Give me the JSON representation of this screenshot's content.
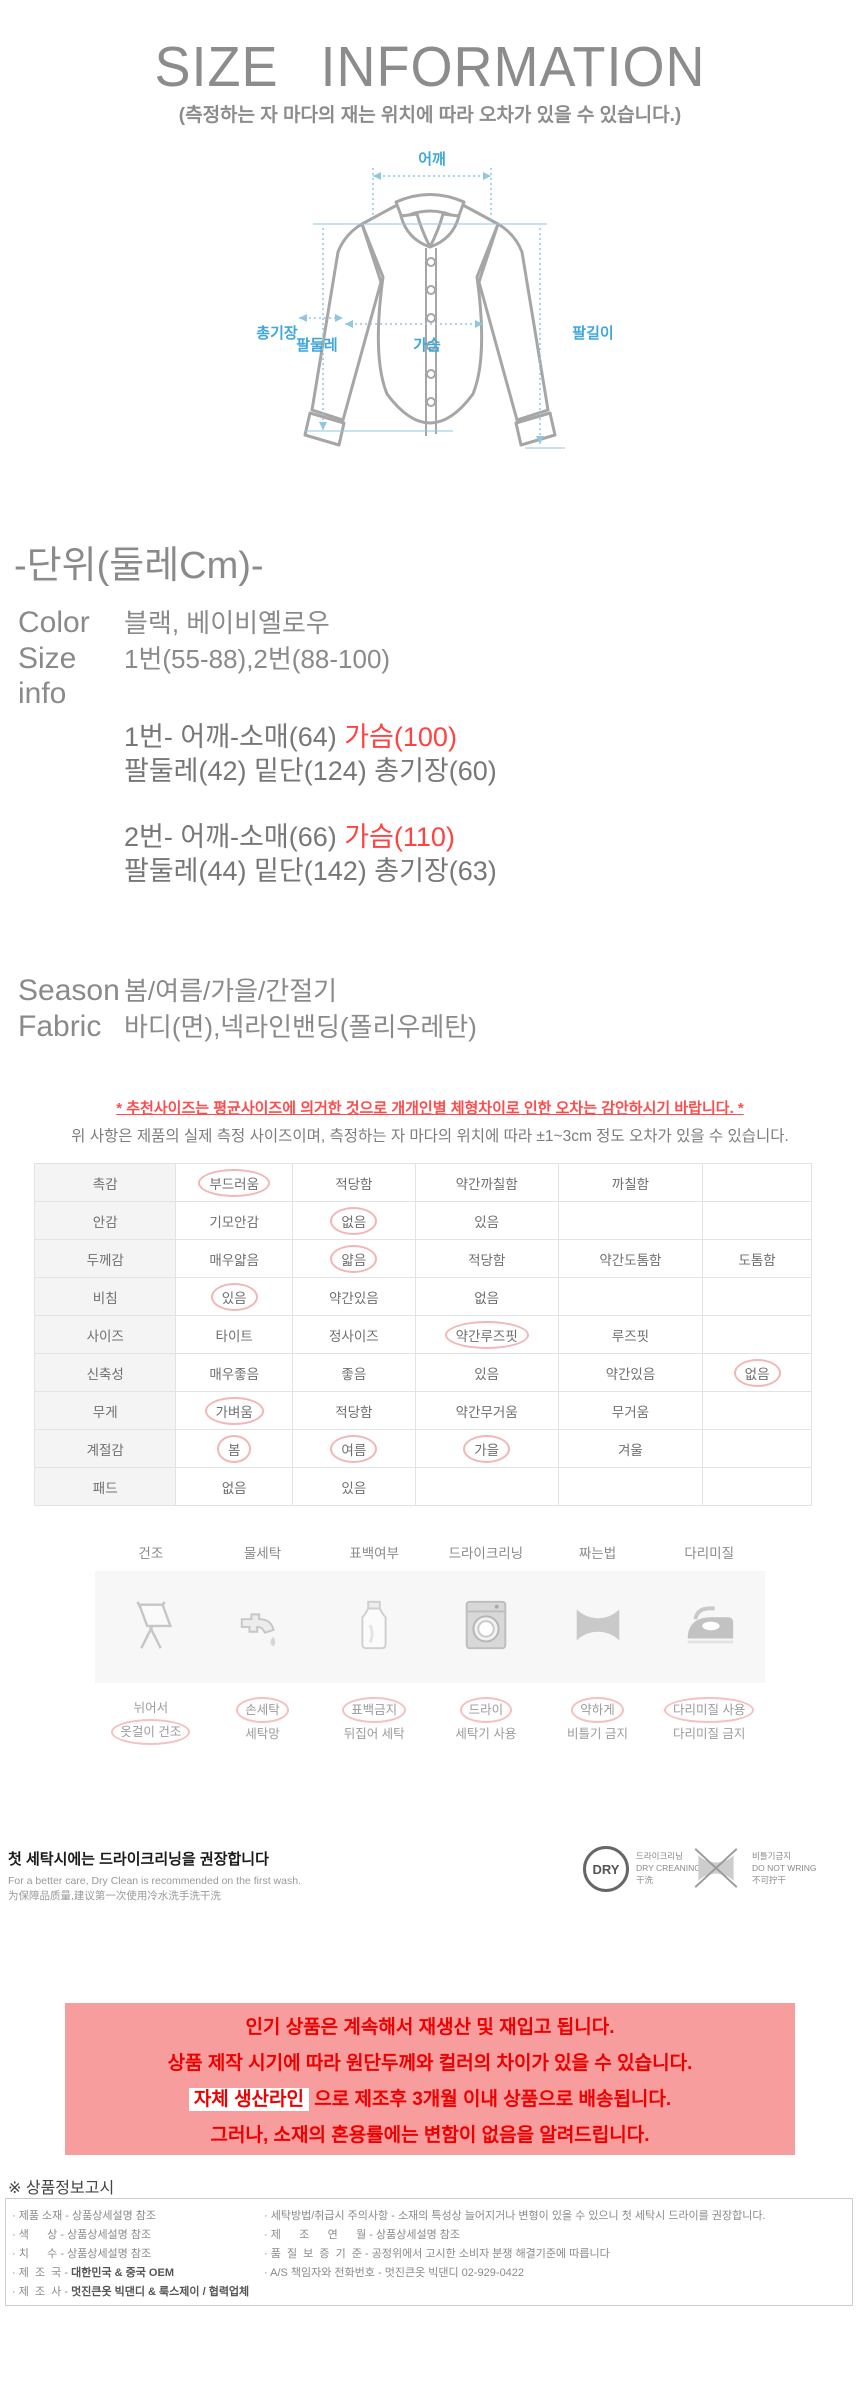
{
  "page": {
    "title": "SIZE INFORMATION",
    "subtitle": "(측정하는 자 마다의 재는 위치에 따라 오차가 있을 수 있습니다.)"
  },
  "diagram": {
    "shoulder": "어깨",
    "arm_circumference": "팔둘레",
    "chest": "가슴",
    "total_length": "총기장",
    "arm_length": "팔길이"
  },
  "unit_heading": "-단위(둘레Cm)-",
  "specs": {
    "color_label": "Color",
    "color_value": "블랙, 베이비옐로우",
    "size_info_label": "Size info",
    "size_info_value": "1번(55-88),2번(88-100)",
    "size1_prefix": "1번- 어깨-소매(64) ",
    "size1_chest": "가슴(100)",
    "size1_line2": "팔둘레(42) 밑단(124) 총기장(60)",
    "size2_prefix": "2번- 어깨-소매(66) ",
    "size2_chest": "가슴(110)",
    "size2_line2": "팔둘레(44) 밑단(142) 총기장(63)",
    "season_label": "Season",
    "season_value": "봄/여름/가을/간절기",
    "fabric_label": "Fabric",
    "fabric_value": "바디(면),넥라인밴딩(폴리우레탄)"
  },
  "notice": {
    "red": "* 추천사이즈는 평균사이즈에 의거한 것으로 개개인별 체형차이로 인한 오차는 감안하시기 바랍니다. *",
    "gray": "위 사항은 제품의 실제 측정 사이즈이며, 측정하는 자 마다의 위치에 따라 ±1~3cm 정도 오차가 있을 수 있습니다."
  },
  "property_table": {
    "rows": [
      {
        "label": "촉감",
        "cells": [
          {
            "t": "부드러움",
            "c": true
          },
          {
            "t": "적당함"
          },
          {
            "t": "약간까칠함"
          },
          {
            "t": "까칠함"
          },
          {
            "t": ""
          }
        ]
      },
      {
        "label": "안감",
        "cells": [
          {
            "t": "기모안감"
          },
          {
            "t": "없음",
            "c": true
          },
          {
            "t": "있음"
          },
          {
            "t": ""
          },
          {
            "t": ""
          }
        ]
      },
      {
        "label": "두께감",
        "cells": [
          {
            "t": "매우얇음"
          },
          {
            "t": "얇음",
            "c": true
          },
          {
            "t": "적당함"
          },
          {
            "t": "약간도톰함"
          },
          {
            "t": "도톰함"
          }
        ]
      },
      {
        "label": "비침",
        "cells": [
          {
            "t": "있음",
            "c": true
          },
          {
            "t": "약간있음"
          },
          {
            "t": "없음"
          },
          {
            "t": ""
          },
          {
            "t": ""
          }
        ]
      },
      {
        "label": "사이즈",
        "cells": [
          {
            "t": "타이트"
          },
          {
            "t": "정사이즈"
          },
          {
            "t": "약간루즈핏",
            "c": true
          },
          {
            "t": "루즈핏"
          },
          {
            "t": ""
          }
        ]
      },
      {
        "label": "신축성",
        "cells": [
          {
            "t": "매우좋음"
          },
          {
            "t": "좋음"
          },
          {
            "t": "있음"
          },
          {
            "t": "약간있음"
          },
          {
            "t": "없음",
            "c": true
          }
        ]
      },
      {
        "label": "무게",
        "cells": [
          {
            "t": "가벼움",
            "c": true
          },
          {
            "t": "적당함"
          },
          {
            "t": "약간무거움"
          },
          {
            "t": "무거움"
          },
          {
            "t": ""
          }
        ]
      },
      {
        "label": "계절감",
        "cells": [
          {
            "t": "봄",
            "c": true
          },
          {
            "t": "여름",
            "c": true
          },
          {
            "t": "가을",
            "c": true
          },
          {
            "t": "겨울"
          },
          {
            "t": ""
          }
        ]
      },
      {
        "label": "패드",
        "cells": [
          {
            "t": "없음"
          },
          {
            "t": "있음"
          },
          {
            "t": ""
          },
          {
            "t": ""
          },
          {
            "t": ""
          }
        ]
      }
    ]
  },
  "care": {
    "columns": [
      {
        "header": "건조",
        "icon": "drying-rack-icon",
        "line1": "뉘어서",
        "line2": "옷걸이 건조",
        "circled": "line2"
      },
      {
        "header": "물세탁",
        "icon": "faucet-icon",
        "line1": "손세탁",
        "line2": "세탁망",
        "circled": "line1"
      },
      {
        "header": "표백여부",
        "icon": "detergent-bottle-icon",
        "line1": "표백금지",
        "line2": "뒤집어 세탁",
        "circled": "line1"
      },
      {
        "header": "드라이크리닝",
        "icon": "washing-machine-icon",
        "line1": "드라이",
        "line2": "세탁기 사용",
        "circled": "line1"
      },
      {
        "header": "짜는법",
        "icon": "wring-icon",
        "line1": "약하게",
        "line2": "비틀기 금지",
        "circled": "line1"
      },
      {
        "header": "다리미질",
        "icon": "iron-icon",
        "line1": "다리미질 사용",
        "line2": "다리미질 금지",
        "circled": "line1"
      }
    ]
  },
  "wash_note": {
    "bold": "첫 세탁시에는 드라이크리닝을 권장합니다",
    "en": "For a better care, Dry Clean is recommended on the first wash.",
    "cn": "为保障品质量,建议第一次使用冷水洗手洗干洗",
    "dry_badge": "DRY",
    "dry_caption1": "드라이크리닝",
    "dry_caption2": "DRY CREANING",
    "dry_caption3": "干洗",
    "wring_caption1": "비틀기금지",
    "wring_caption2": "DO NOT WRING",
    "wring_caption3": "不可拧干"
  },
  "promo_box": {
    "line1": "인기 상품은 계속해서 재생산 및 재입고 됩니다.",
    "line2": "상품 제작 시기에 따라 원단두께와 컬러의 차이가 있을 수 있습니다.",
    "line3_chip": "자체 생산라인",
    "line3_rest": " 으로 제조후 3개월 이내 상품으로 배송됩니다.",
    "line4": "그러나, 소재의 혼용률에는 변함이 없음을 알려드립니다."
  },
  "product_info": {
    "heading": "※ 상품정보고시",
    "left": [
      {
        "label": "제품 소재",
        "value": "상품상세설명 참조",
        "bold": false
      },
      {
        "label": "색      상",
        "value": "상품상세설명 참조",
        "bold": false
      },
      {
        "label": "치      수",
        "value": "상품상세설명 참조",
        "bold": false
      },
      {
        "label": "제  조  국",
        "value": "대한민국 & 중국 OEM",
        "bold": true
      },
      {
        "label": "제  조  사",
        "value": "멋진큰옷 빅댄디 & 룩스제이 / 협력업체",
        "bold": true
      }
    ],
    "right": [
      {
        "label": "세탁방법/취급시 주의사항",
        "value": "소재의 특성상 늘어지거나 변형이 있을 수 있으니 첫 세탁시 드라이를 권장합니다.",
        "bold": false
      },
      {
        "label": "제      조      연      월",
        "value": "상품상세설명 참조",
        "bold": false
      },
      {
        "label": "품  질  보  증  기  준",
        "value": "공정위에서 고시한 소비자 분쟁 해결기준에 따릅니다",
        "bold": false
      },
      {
        "label": "A/S 책임자와 전화번호",
        "value": "멋진큰옷 빅댄디 02-929-0422",
        "bold": false
      }
    ]
  },
  "colors": {
    "title_gray": "#8c8c8c",
    "diagram_blue": "#3fa7d9",
    "accent_red": "#ff4242",
    "warning_red": "#ff4b4b",
    "circle_pink": "#f2b6b6",
    "promo_bg": "#f89d9d",
    "promo_text": "#ee0000",
    "table_header_bg": "#f4f4f4"
  }
}
